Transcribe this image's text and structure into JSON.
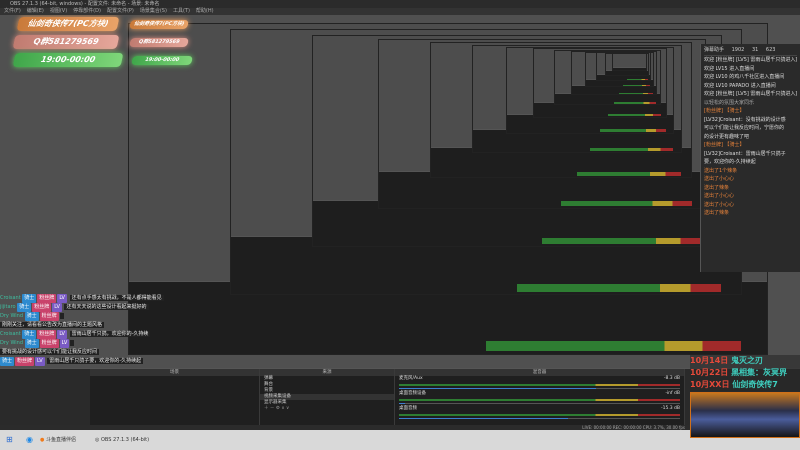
{
  "window": {
    "title": "OBS 27.1.3 (64-bit, windows) - 配置文件: 未命名 - 场景: 未命名"
  },
  "menu": [
    "文件(F)",
    "编辑(E)",
    "视图(V)",
    "停靠部件(D)",
    "配置文件(P)",
    "场景集合(S)",
    "工具(T)",
    "帮助(H)"
  ],
  "banners": {
    "game": "仙剑奇侠传7(PC方块)",
    "qq": "Q群581279569",
    "time": "19:00-00:00"
  },
  "colors": {
    "accent_orange": "#e8833a",
    "schedule_date": "#e64a3a",
    "schedule_title": "#3fd0c0"
  },
  "chat_panel": {
    "title": "弹幕助手",
    "stats": [
      "1902",
      "31",
      "623"
    ],
    "lines": [
      {
        "text": "欢迎 [粉丝牌] [LV5] 雷雨山居千只鸽进入直播间",
        "color": "white"
      },
      {
        "text": "欢迎 LV15 进入直播间",
        "color": "white"
      },
      {
        "text": "欢迎 LV10 的鸡八千社区进入直播间",
        "color": "white"
      },
      {
        "text": "欢迎 LV10 PAPADO 进入直播间",
        "color": "white"
      },
      {
        "text": "欢迎 [粉丝牌] [LV5] 雷雨山居千只鸽进入直播间",
        "color": "white"
      },
      {
        "text": "以轻松的氛围大家同乐",
        "color": "gray"
      },
      {
        "text": "[粉丝牌] 【骑士】",
        "color": "orange"
      },
      {
        "text": "[LV32]Croisant：没有挑战的设计感",
        "color": "white"
      },
      {
        "text": "可以个们能让我反应时间，宁愿你的",
        "color": "white"
      },
      {
        "text": "的设计更有趣味了吧",
        "color": "white"
      },
      {
        "text": "[粉丝牌] 【骑士】",
        "color": "orange"
      },
      {
        "text": "[LV32]Croisant：雷雨山居千只鸽子",
        "color": "white"
      },
      {
        "text": "要，欢迎你的-久持续起",
        "color": "white"
      },
      {
        "text": "送出了1个辣条",
        "color": "orange"
      },
      {
        "text": "送出了小心心",
        "color": "orange"
      },
      {
        "text": "送出了辣条",
        "color": "orange"
      },
      {
        "text": "送出了小心心",
        "color": "orange"
      },
      {
        "text": "送出了小心心",
        "color": "orange"
      },
      {
        "text": "送出了辣条",
        "color": "orange"
      }
    ]
  },
  "schedule": [
    {
      "date": "10月14日",
      "title": "鬼灭之刃"
    },
    {
      "date": "10月22日",
      "title": "黑相集：灰冥界"
    },
    {
      "date": "10月XX日",
      "title": "仙剑奇侠传7"
    }
  ],
  "overlay_chat": [
    {
      "user": "Croisant",
      "tags": [
        "骑士",
        "粉丝牌",
        "LV"
      ],
      "text": "还有点手感太有挑战，不是人都得能看见"
    },
    {
      "user": "jijitaro",
      "tags": [
        "骑士",
        "粉丝牌",
        "LV"
      ],
      "text": "还有天天说的这些设计看起来挺好的"
    },
    {
      "user": "Dry Wind",
      "tags": [
        "骑士",
        "粉丝牌"
      ],
      "text": ""
    },
    {
      "user": "",
      "tags": [],
      "text": "刚刚关注，请看看公告改为直播间的主题风格"
    },
    {
      "user": "Croisant",
      "tags": [
        "骑士",
        "粉丝牌",
        "LV"
      ],
      "text": "雷雨山居千只鸽，欢迎你的-久持续"
    },
    {
      "user": "Dry Wind",
      "tags": [
        "骑士",
        "粉丝牌",
        "LV"
      ],
      "text": ""
    },
    {
      "user": "",
      "tags": [],
      "text": "要有挑战的设计感可以个们能让我反应时间"
    },
    {
      "user": "",
      "tags": [
        "骑士",
        "粉丝牌",
        "LV"
      ],
      "text": "雷雨山居千只鸽子要，欢迎你的-久持续起"
    }
  ],
  "docks": {
    "scenes": "场景",
    "sources": "来源",
    "mixer": "混音器",
    "source_items": [
      "弹幕",
      "舞台",
      "背景",
      "视频采集设备",
      "显示器采集"
    ],
    "mixer_channels": [
      {
        "name": "麦克风/Aux",
        "db": "-8.3 dB",
        "level": 0.7
      },
      {
        "name": "桌面音频设备",
        "db": "-inf dB",
        "level": 0.02
      },
      {
        "name": "桌面音频",
        "db": "-15.3 dB",
        "level": 0.6
      }
    ]
  },
  "status": {
    "text": "LIVE: 00:00:00  REC: 00:00:00  CPU: 3.7%, 30.00 fps"
  },
  "taskbar": {
    "items": [
      "斗鱼直播伴侣",
      "OBS 27.1.3 (64-bit)"
    ]
  }
}
